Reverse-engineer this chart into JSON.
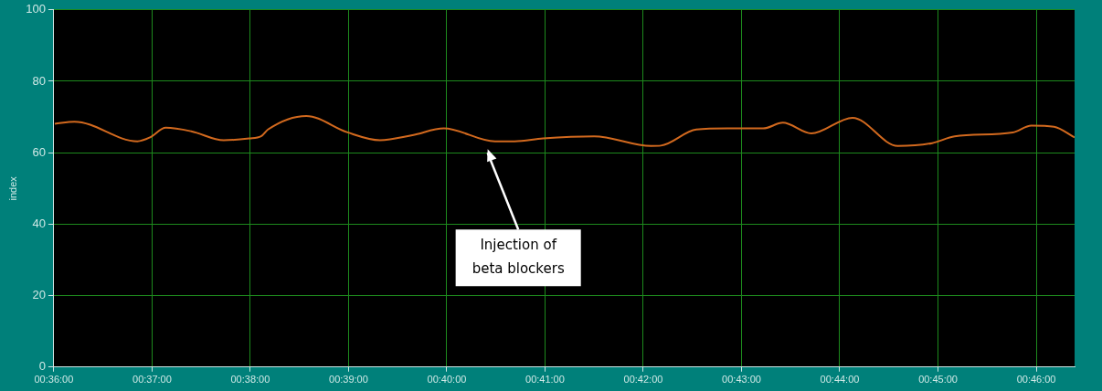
{
  "chart_data": {
    "type": "line",
    "ylabel": "index",
    "x": [
      0.60017,
      0.6035,
      0.61417,
      0.61633,
      0.619,
      0.62333,
      0.62883,
      0.63317,
      0.63517,
      0.63633,
      0.64283,
      0.64983,
      0.65533,
      0.66083,
      0.66617,
      0.67483,
      0.67817,
      0.683,
      0.69167,
      0.70133,
      0.703,
      0.709,
      0.71433,
      0.71917,
      0.72033,
      0.72367,
      0.7285,
      0.7355,
      0.74317,
      0.749,
      0.75283,
      0.76267,
      0.76583,
      0.76967,
      0.77317
    ],
    "series": [
      {
        "color": "#d2691e",
        "values": [
          68.1,
          68.7,
          63.2,
          64.3,
          67,
          66,
          63.5,
          64,
          64.6,
          66.5,
          70.3,
          65.7,
          63.5,
          64.9,
          66.8,
          63.2,
          63.2,
          64,
          64.6,
          61.9,
          62,
          66.5,
          66.8,
          66.8,
          66.8,
          68.4,
          65.4,
          69.8,
          61.9,
          62.7,
          64.6,
          65.7,
          67.6,
          67.3,
          64.3
        ]
      }
    ],
    "xlim": [
      0.6,
      0.77317
    ],
    "xticks": [
      {
        "value": 0.6,
        "label": "00:36:00"
      },
      {
        "value": 0.61667,
        "label": "00:37:00"
      },
      {
        "value": 0.63333,
        "label": "00:38:00"
      },
      {
        "value": 0.65,
        "label": "00:39:00"
      },
      {
        "value": 0.66667,
        "label": "00:40:00"
      },
      {
        "value": 0.68333,
        "label": "00:41:00"
      },
      {
        "value": 0.7,
        "label": "00:42:00"
      },
      {
        "value": 0.71667,
        "label": "00:43:00"
      },
      {
        "value": 0.73333,
        "label": "00:44:00"
      },
      {
        "value": 0.75,
        "label": "00:45:00"
      },
      {
        "value": 0.76667,
        "label": "00:46:00"
      }
    ],
    "ylim": [
      0,
      100
    ],
    "yticks": [
      0,
      20,
      40,
      60,
      80,
      100
    ],
    "grid": true,
    "legend": false,
    "marker": "none",
    "line_style": "solid",
    "annotations": [
      "Injection of\nbeta blockers"
    ]
  }
}
